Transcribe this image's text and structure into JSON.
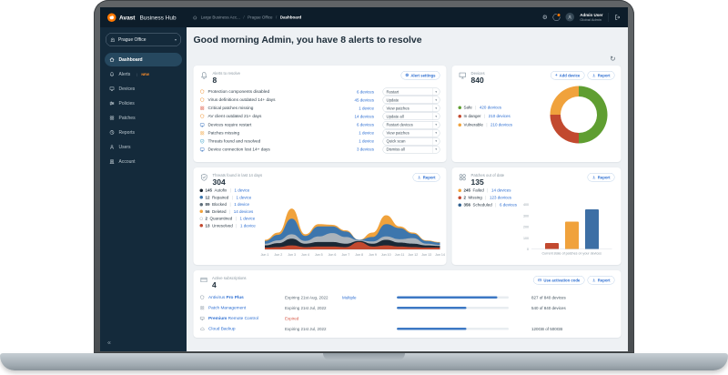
{
  "icons": {
    "gear": "⚙",
    "chevron_down": "▾",
    "refresh": "↻",
    "collapse": "«",
    "separator": "/",
    "plus": "+",
    "pipe": "|"
  },
  "topbar": {
    "brand_bold": "Avast",
    "brand_rest": "Business Hub",
    "breadcrumb": [
      "Large Business Acc...",
      "Prague Office",
      "Dashboard"
    ],
    "user_name": "Admin User",
    "user_role": "Global Admin"
  },
  "sidebar": {
    "org_label": "Prague Office",
    "items": [
      {
        "label": "Dashboard",
        "icon": "home-icon",
        "active": true
      },
      {
        "label": "Alerts",
        "icon": "bell-icon",
        "badge": "NEW"
      },
      {
        "label": "Devices",
        "icon": "monitor-icon"
      },
      {
        "label": "Policies",
        "icon": "sliders-icon"
      },
      {
        "label": "Patches",
        "icon": "patches-icon"
      },
      {
        "label": "Reports",
        "icon": "reports-icon"
      },
      {
        "label": "Users",
        "icon": "user-icon"
      },
      {
        "label": "Account",
        "icon": "account-icon"
      }
    ]
  },
  "main": {
    "greeting": "Good morning Admin, you have 8 alerts to resolve"
  },
  "cards": {
    "alerts": {
      "title": "Alerts to resolve",
      "count": "8",
      "settings_label": "Alert settings",
      "rows": [
        {
          "icon": "shield-icon",
          "color": "#ef9434",
          "label": "Protection components disabled",
          "devices": "6 devices",
          "action": "Restart"
        },
        {
          "icon": "shield-icon",
          "color": "#ef9434",
          "label": "Virus definitions outdated 14+ days",
          "devices": "45 devices",
          "action": "Update"
        },
        {
          "icon": "patches-icon",
          "color": "#d8442c",
          "label": "Critical patches missing",
          "devices": "1 device",
          "action": "View patches"
        },
        {
          "icon": "shield-icon",
          "color": "#ef9434",
          "label": "AV client outdated 21+ days",
          "devices": "14 devices",
          "action": "Update all"
        },
        {
          "icon": "monitor-icon",
          "color": "#3d76c0",
          "label": "Devices require restart",
          "devices": "6 devices",
          "action": "Restart devices"
        },
        {
          "icon": "patches-icon",
          "color": "#f0a23c",
          "label": "Patches missing",
          "devices": "1 device",
          "action": "View patches"
        },
        {
          "icon": "shield-check-icon",
          "color": "#3aa0c8",
          "label": "Threats found and resolved",
          "devices": "1 device",
          "action": "Quick scan"
        },
        {
          "icon": "monitor-icon",
          "color": "#3d76c0",
          "label": "Device connection lost 14+ days",
          "devices": "3 devices",
          "action": "Dismiss all"
        }
      ]
    },
    "devices": {
      "title": "Devices",
      "count": "840",
      "add_label": "Add device",
      "report_label": "Report",
      "legend": [
        {
          "name": "Safe",
          "value": "420 devices",
          "color": "#5f9e31"
        },
        {
          "name": "In danger",
          "value": "210 devices",
          "color": "#c2492f"
        },
        {
          "name": "Vulnerable",
          "value": "210 devices",
          "color": "#f0a23c"
        }
      ]
    },
    "threats": {
      "title": "Threats found in last 14 days",
      "count": "304",
      "report_label": "Report",
      "legend": [
        {
          "count": "145",
          "name": "Autofix",
          "devices": "1 device",
          "color": "#16222e"
        },
        {
          "count": "12",
          "name": "Repaired",
          "devices": "1 device",
          "color": "#3d76ad"
        },
        {
          "count": "89",
          "name": "Blocked",
          "devices": "1 device",
          "color": "#5b6b77"
        },
        {
          "count": "56",
          "name": "Deleted",
          "devices": "14 devices",
          "color": "#f0a23c"
        },
        {
          "count": "2",
          "name": "Quarantined",
          "devices": "1 device",
          "color": "#ffffff",
          "outlined": true
        },
        {
          "count": "13",
          "name": "Unresolved",
          "devices": "1 device",
          "color": "#c2492f"
        }
      ]
    },
    "patches": {
      "title": "Patches out of date",
      "count": "135",
      "report_label": "Report",
      "legend": [
        {
          "count": "245",
          "name": "Failed",
          "devices": "14 devices",
          "color": "#f0a23c"
        },
        {
          "count": "2",
          "name": "Missing",
          "devices": "123 devices",
          "color": "#c2492f"
        },
        {
          "count": "356",
          "name": "Scheduled",
          "devices": "6 devices",
          "color": "#2e5f8f"
        }
      ],
      "caption": "Current state of patches on your devices"
    },
    "subscriptions": {
      "title": "Active subscriptions",
      "count": "4",
      "activation_label": "Use activation code",
      "report_label": "Report",
      "rows": [
        {
          "icon": "shield-icon",
          "name_parts": [
            {
              "t": "Antivirus "
            },
            {
              "t": "Pro Plus",
              "b": true
            }
          ],
          "expiry": "Expiring 21st Aug, 2022",
          "extra": "Multiple",
          "progress": 0.9,
          "usage": "827 of 840 devices"
        },
        {
          "icon": "patches-icon",
          "name_parts": [
            {
              "t": "Patch Management"
            }
          ],
          "expiry": "Expiring 21st Jul, 2022",
          "progress": 0.62,
          "usage": "540 of 840 devices"
        },
        {
          "icon": "monitor-icon",
          "name_parts": [
            {
              "t": "Premium",
              "b": true
            },
            {
              "t": " Remote Control"
            }
          ],
          "expiry": "Expired",
          "expired": true
        },
        {
          "icon": "cloud-icon",
          "name_parts": [
            {
              "t": "Cloud Backup"
            }
          ],
          "expiry": "Expiring 21st Jul, 2022",
          "progress": 0.62,
          "usage": "120GB of 500GB"
        }
      ]
    }
  },
  "chart_data": [
    {
      "type": "pie",
      "donut": true,
      "title": "Devices",
      "labels": [
        "Safe",
        "In danger",
        "Vulnerable"
      ],
      "values": [
        420,
        210,
        210
      ],
      "colors": [
        "#5f9e31",
        "#c2492f",
        "#f0a23c"
      ],
      "total": 840
    },
    {
      "type": "area",
      "stacked": true,
      "title": "Threats found in last 14 days",
      "x": [
        "Jun 1",
        "Jun 2",
        "Jun 3",
        "Jun 4",
        "Jun 5",
        "Jun 6",
        "Jun 7",
        "Jun 8",
        "Jun 9",
        "Jun 10",
        "Jun 11",
        "Jun 12",
        "Jun 13",
        "Jun 14"
      ],
      "ymax": 80,
      "series": [
        {
          "name": "Unresolved",
          "color": "#c2492f",
          "values": [
            4,
            5,
            8,
            5,
            6,
            6,
            5,
            14,
            6,
            8,
            6,
            5,
            4,
            4
          ]
        },
        {
          "name": "Autofix",
          "color": "#1b2835",
          "values": [
            4,
            7,
            12,
            6,
            8,
            8,
            6,
            2,
            5,
            10,
            7,
            6,
            4,
            3
          ]
        },
        {
          "name": "Quarantined",
          "color": "#aab3bb",
          "values": [
            3,
            5,
            8,
            5,
            10,
            16,
            12,
            1,
            4,
            6,
            6,
            10,
            3,
            2
          ]
        },
        {
          "name": "Repaired",
          "color": "#3d76ad",
          "values": [
            5,
            10,
            28,
            9,
            18,
            12,
            10,
            1,
            8,
            22,
            20,
            8,
            5,
            4
          ]
        },
        {
          "name": "Deleted",
          "color": "#f0a23c",
          "values": [
            2,
            4,
            18,
            3,
            4,
            3,
            2,
            0,
            8,
            16,
            3,
            2,
            1,
            1
          ]
        }
      ],
      "legend_position": "left",
      "grid": false
    },
    {
      "type": "bar",
      "title": "Current state of patches on your devices",
      "categories": [
        "Missing",
        "Failed",
        "Scheduled"
      ],
      "values": [
        2,
        245,
        356
      ],
      "colors": [
        "#c2492f",
        "#f0a23c",
        "#3d6fa5"
      ],
      "ylim": [
        0,
        400
      ],
      "yticks": [
        400,
        300,
        200,
        100,
        0
      ]
    }
  ]
}
